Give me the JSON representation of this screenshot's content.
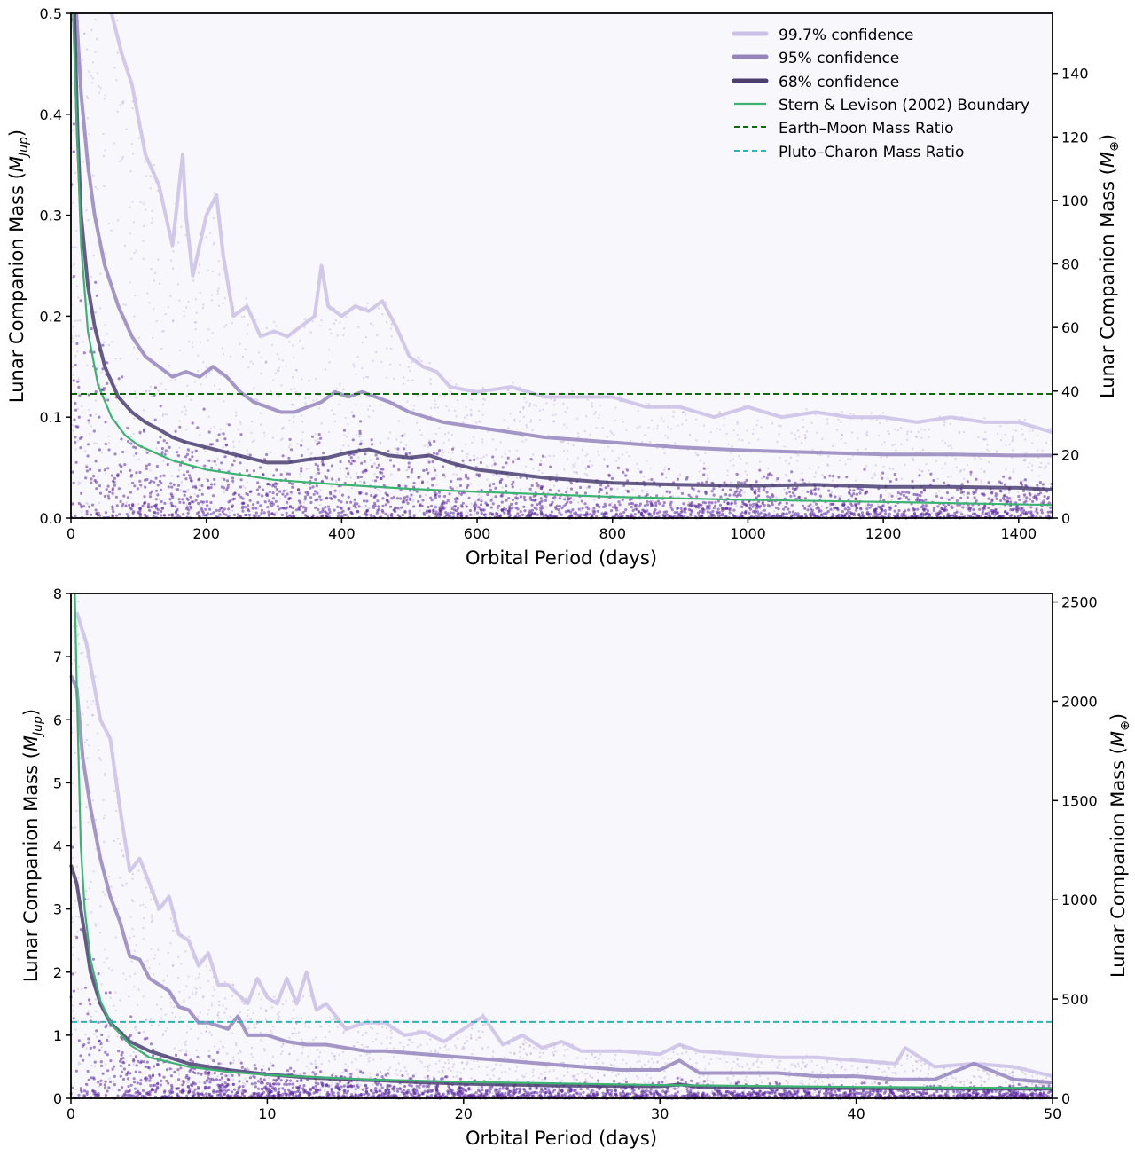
{
  "chart_data": [
    {
      "type": "line",
      "id": "top",
      "xlabel": "Orbital Period (days)",
      "ylabel": "Lunar Companion Mass (M_Jup)",
      "ylabel_prefix": "Lunar Companion Mass (",
      "ylabel_sym": "M",
      "ylabel_sub": "Jup",
      "ylabel_suffix": ")",
      "y2label_prefix": "Lunar Companion Mass (",
      "y2label_sym": "M",
      "y2label_sub": "⊕",
      "y2label_suffix": ")",
      "xlim": [
        0,
        1450
      ],
      "ylim": [
        0,
        0.5
      ],
      "y2lim": [
        0,
        158.9
      ],
      "xticks": [
        0,
        200,
        400,
        600,
        800,
        1000,
        1200,
        1400
      ],
      "yticks": [
        "0.0",
        "0.1",
        "0.2",
        "0.3",
        "0.4",
        "0.5"
      ],
      "ytick_values": [
        0,
        0.1,
        0.2,
        0.3,
        0.4,
        0.5
      ],
      "y2ticks": [
        0,
        20,
        40,
        60,
        80,
        100,
        120,
        140
      ],
      "background_color": "#f8f7fc",
      "scatter_color": "#5b2a9e",
      "hline": {
        "name": "Earth–Moon Mass Ratio",
        "y": 0.123,
        "color": "#0b6b0b"
      },
      "boundary": {
        "name": "Stern & Levison (2002) Boundary",
        "color": "#3cb371",
        "x": [
          3,
          8,
          15,
          25,
          40,
          60,
          80,
          100,
          150,
          200,
          300,
          400,
          500,
          600,
          800,
          1000,
          1200,
          1450
        ],
        "y": [
          0.5,
          0.4,
          0.27,
          0.185,
          0.132,
          0.1,
          0.082,
          0.072,
          0.057,
          0.048,
          0.038,
          0.033,
          0.029,
          0.026,
          0.021,
          0.018,
          0.016,
          0.013
        ]
      },
      "series": [
        {
          "name": "99.7% confidence",
          "color": "#cbbfe6",
          "x": [
            60,
            75,
            90,
            110,
            130,
            150,
            165,
            170,
            180,
            200,
            215,
            225,
            240,
            260,
            280,
            300,
            320,
            340,
            360,
            370,
            380,
            400,
            420,
            440,
            460,
            480,
            500,
            520,
            540,
            560,
            600,
            650,
            700,
            750,
            800,
            850,
            900,
            950,
            1000,
            1050,
            1100,
            1150,
            1200,
            1250,
            1300,
            1350,
            1400,
            1450
          ],
          "y": [
            0.5,
            0.46,
            0.43,
            0.36,
            0.33,
            0.27,
            0.36,
            0.3,
            0.24,
            0.3,
            0.32,
            0.26,
            0.2,
            0.21,
            0.18,
            0.185,
            0.18,
            0.19,
            0.2,
            0.25,
            0.21,
            0.2,
            0.21,
            0.205,
            0.215,
            0.19,
            0.16,
            0.15,
            0.145,
            0.13,
            0.125,
            0.13,
            0.12,
            0.12,
            0.12,
            0.11,
            0.11,
            0.1,
            0.11,
            0.1,
            0.105,
            0.1,
            0.1,
            0.095,
            0.1,
            0.095,
            0.095,
            0.085
          ]
        },
        {
          "name": "95% confidence",
          "color": "#9585bd",
          "x": [
            8,
            15,
            25,
            35,
            50,
            70,
            90,
            110,
            130,
            150,
            170,
            190,
            210,
            230,
            250,
            270,
            290,
            310,
            330,
            350,
            370,
            390,
            410,
            430,
            450,
            470,
            500,
            550,
            600,
            700,
            800,
            900,
            1000,
            1100,
            1200,
            1300,
            1400,
            1450
          ],
          "y": [
            0.5,
            0.42,
            0.35,
            0.3,
            0.25,
            0.21,
            0.18,
            0.16,
            0.15,
            0.14,
            0.145,
            0.14,
            0.15,
            0.14,
            0.125,
            0.115,
            0.11,
            0.105,
            0.105,
            0.11,
            0.115,
            0.125,
            0.12,
            0.125,
            0.12,
            0.115,
            0.105,
            0.095,
            0.09,
            0.08,
            0.075,
            0.07,
            0.067,
            0.065,
            0.063,
            0.063,
            0.062,
            0.062
          ]
        },
        {
          "name": "68% confidence",
          "color": "#4b3f72",
          "x": [
            5,
            10,
            15,
            25,
            35,
            50,
            70,
            90,
            110,
            130,
            150,
            170,
            200,
            230,
            260,
            290,
            320,
            350,
            380,
            410,
            440,
            470,
            500,
            530,
            560,
            600,
            700,
            800,
            900,
            1000,
            1100,
            1200,
            1300,
            1400,
            1450
          ],
          "y": [
            0.5,
            0.38,
            0.3,
            0.23,
            0.19,
            0.15,
            0.12,
            0.105,
            0.095,
            0.088,
            0.08,
            0.075,
            0.07,
            0.065,
            0.06,
            0.055,
            0.055,
            0.058,
            0.06,
            0.065,
            0.068,
            0.062,
            0.06,
            0.062,
            0.055,
            0.048,
            0.04,
            0.035,
            0.033,
            0.032,
            0.033,
            0.031,
            0.031,
            0.03,
            0.028
          ]
        }
      ]
    },
    {
      "type": "line",
      "id": "bottom",
      "xlabel": "Orbital Period (days)",
      "ylabel": "Lunar Companion Mass (M_Jup)",
      "ylabel_prefix": "Lunar Companion Mass (",
      "ylabel_sym": "M",
      "ylabel_sub": "Jup",
      "ylabel_suffix": ")",
      "y2label_prefix": "Lunar Companion Mass (",
      "y2label_sym": "M",
      "y2label_sub": "⊕",
      "y2label_suffix": ")",
      "xlim": [
        0,
        50
      ],
      "ylim": [
        0,
        8
      ],
      "y2lim": [
        0,
        2542.6
      ],
      "xticks": [
        0,
        10,
        20,
        30,
        40,
        50
      ],
      "yticks": [
        "0",
        "1",
        "2",
        "3",
        "4",
        "5",
        "6",
        "7",
        "8"
      ],
      "ytick_values": [
        0,
        1,
        2,
        3,
        4,
        5,
        6,
        7,
        8
      ],
      "y2ticks": [
        0,
        500,
        1000,
        1500,
        2000,
        2500
      ],
      "background_color": "#f8f7fc",
      "scatter_color": "#5b2a9e",
      "hline": {
        "name": "Pluto–Charon Mass Ratio",
        "y": 1.21,
        "color": "#2bb3b3"
      },
      "boundary": {
        "name": "Stern & Levison (2002) Boundary",
        "color": "#3cb371",
        "x": [
          0.2,
          0.3,
          0.5,
          0.7,
          1,
          1.5,
          2,
          3,
          4,
          6,
          8,
          10,
          15,
          20,
          30,
          40,
          50
        ],
        "y": [
          8,
          6.5,
          4,
          3,
          2.2,
          1.55,
          1.2,
          0.85,
          0.65,
          0.5,
          0.42,
          0.37,
          0.3,
          0.26,
          0.21,
          0.18,
          0.16
        ]
      },
      "series": [
        {
          "name": "99.7% confidence",
          "color": "#cbbfe6",
          "x": [
            0.3,
            0.8,
            1.5,
            2,
            2.5,
            3,
            3.5,
            4,
            4.5,
            5,
            5.5,
            6,
            6.5,
            7,
            7.5,
            8,
            9,
            9.5,
            10,
            10.5,
            11,
            11.5,
            12,
            12.5,
            13,
            14,
            15,
            16,
            17,
            18,
            19,
            20,
            21,
            22,
            23,
            24,
            25,
            26,
            28,
            30,
            31,
            32,
            34,
            36,
            38,
            40,
            42,
            42.5,
            44,
            46,
            48,
            50
          ],
          "y": [
            7.7,
            7.2,
            6.0,
            5.7,
            4.6,
            3.6,
            3.8,
            3.4,
            3.0,
            3.2,
            2.6,
            2.5,
            2.1,
            2.3,
            1.8,
            1.8,
            1.5,
            1.9,
            1.6,
            1.5,
            1.9,
            1.5,
            2.0,
            1.4,
            1.5,
            1.1,
            1.2,
            1.2,
            1.0,
            1.05,
            0.9,
            1.1,
            1.3,
            0.85,
            1.0,
            0.8,
            0.9,
            0.75,
            0.75,
            0.7,
            0.85,
            0.75,
            0.7,
            0.65,
            0.65,
            0.6,
            0.55,
            0.8,
            0.5,
            0.55,
            0.5,
            0.35
          ]
        },
        {
          "name": "95% confidence",
          "color": "#9585bd",
          "x": [
            0,
            0.3,
            0.6,
            1,
            1.5,
            2,
            2.5,
            3,
            3.5,
            4,
            5,
            5.5,
            6,
            6.5,
            7,
            8,
            8.5,
            9,
            10,
            11,
            12,
            13,
            14,
            15,
            16,
            18,
            20,
            22,
            24,
            26,
            28,
            30,
            31,
            32,
            34,
            36,
            38,
            40,
            42,
            44,
            46,
            48,
            50
          ],
          "y": [
            6.7,
            6.5,
            5.4,
            4.6,
            3.8,
            3.2,
            2.8,
            2.25,
            2.2,
            1.9,
            1.7,
            1.45,
            1.4,
            1.2,
            1.2,
            1.1,
            1.3,
            1.0,
            1.0,
            0.9,
            0.85,
            0.85,
            0.8,
            0.75,
            0.75,
            0.7,
            0.65,
            0.6,
            0.55,
            0.5,
            0.45,
            0.45,
            0.6,
            0.4,
            0.4,
            0.4,
            0.35,
            0.35,
            0.3,
            0.3,
            0.55,
            0.3,
            0.25
          ]
        },
        {
          "name": "68% confidence",
          "color": "#4b3f72",
          "x": [
            0,
            0.3,
            0.7,
            1,
            1.5,
            2,
            3,
            4,
            5,
            6,
            7,
            8,
            10,
            12,
            14,
            16,
            18,
            20,
            25,
            30,
            31,
            32,
            35,
            40,
            45,
            50
          ],
          "y": [
            3.7,
            3.4,
            2.6,
            2.0,
            1.5,
            1.2,
            0.9,
            0.75,
            0.65,
            0.55,
            0.5,
            0.45,
            0.38,
            0.33,
            0.3,
            0.28,
            0.25,
            0.23,
            0.2,
            0.19,
            0.22,
            0.18,
            0.17,
            0.16,
            0.15,
            0.15
          ]
        }
      ]
    }
  ]
}
